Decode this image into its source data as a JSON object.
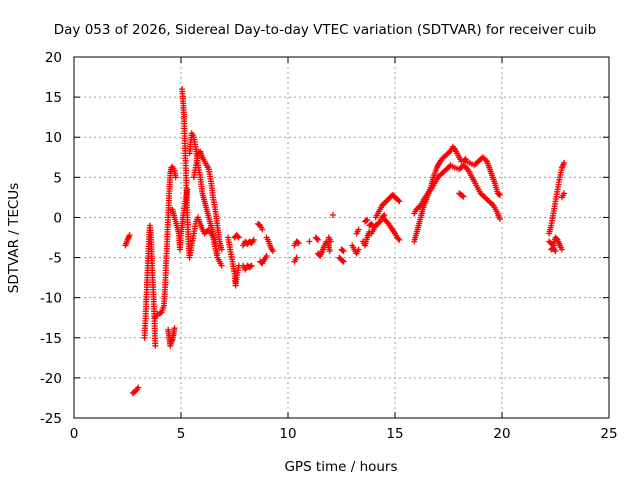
{
  "chart_data": {
    "type": "scatter",
    "title": "Day 053 of 2026, Sidereal Day-to-day VTEC variation (SDTVAR) for receiver cuib",
    "xlabel": "GPS time / hours",
    "ylabel": "SDTVAR / TECUs",
    "xlim": [
      0,
      25
    ],
    "ylim": [
      -25,
      20
    ],
    "xticks": [
      0,
      5,
      10,
      15,
      20,
      25
    ],
    "yticks": [
      -25,
      -20,
      -15,
      -10,
      -5,
      0,
      5,
      10,
      15,
      20
    ],
    "grid": true,
    "marker": "+",
    "color": "#ff0000",
    "segments": [
      [
        [
          2.4,
          -3.5
        ],
        [
          2.5,
          -2.8
        ],
        [
          2.6,
          -2.2
        ]
      ],
      [
        [
          2.75,
          -21.9
        ],
        [
          2.85,
          -21.7
        ],
        [
          2.95,
          -21.4
        ],
        [
          3.0,
          -21.2
        ]
      ],
      [
        [
          3.3,
          -15.0
        ],
        [
          3.35,
          -12.0
        ],
        [
          3.4,
          -9.0
        ],
        [
          3.45,
          -6.0
        ],
        [
          3.5,
          -3.0
        ],
        [
          3.55,
          -1.0
        ],
        [
          3.6,
          -2.5
        ],
        [
          3.65,
          -6.0
        ],
        [
          3.7,
          -9.0
        ],
        [
          3.75,
          -12.0
        ],
        [
          3.8,
          -16.0
        ]
      ],
      [
        [
          3.8,
          -12.5
        ],
        [
          3.9,
          -12.0
        ],
        [
          4.0,
          -12.0
        ],
        [
          4.1,
          -11.8
        ],
        [
          4.2,
          -11.0
        ],
        [
          4.25,
          -9.0
        ],
        [
          4.3,
          -6.0
        ],
        [
          4.35,
          -3.0
        ],
        [
          4.4,
          0.0
        ],
        [
          4.45,
          3.0
        ],
        [
          4.5,
          5.5
        ],
        [
          4.55,
          6.2
        ],
        [
          4.6,
          6.3
        ],
        [
          4.7,
          5.8
        ],
        [
          4.75,
          5.0
        ]
      ],
      [
        [
          4.4,
          -14.0
        ],
        [
          4.45,
          -15.0
        ],
        [
          4.5,
          -16.0
        ],
        [
          4.55,
          -15.5
        ],
        [
          4.6,
          -15.2
        ],
        [
          4.65,
          -14.5
        ],
        [
          4.7,
          -13.8
        ]
      ],
      [
        [
          4.6,
          1.0
        ],
        [
          4.7,
          0.0
        ],
        [
          4.8,
          -1.0
        ],
        [
          4.9,
          -2.0
        ],
        [
          4.95,
          -4.0
        ],
        [
          5.0,
          -2.0
        ],
        [
          5.05,
          -1.0
        ],
        [
          5.1,
          0.0
        ],
        [
          5.2,
          2.0
        ],
        [
          5.3,
          3.5
        ]
      ],
      [
        [
          5.05,
          16.0
        ],
        [
          5.1,
          14.5
        ],
        [
          5.15,
          12.0
        ],
        [
          5.2,
          8.0
        ],
        [
          5.25,
          4.0
        ],
        [
          5.3,
          0.0
        ],
        [
          5.35,
          -3.0
        ],
        [
          5.4,
          -5.0
        ],
        [
          5.5,
          -3.5
        ],
        [
          5.6,
          -2.0
        ],
        [
          5.7,
          -0.5
        ],
        [
          5.8,
          0.0
        ],
        [
          5.9,
          -0.8
        ],
        [
          6.0,
          -1.5
        ],
        [
          6.1,
          -2.0
        ],
        [
          6.3,
          -1.5
        ],
        [
          6.5,
          -2.5
        ],
        [
          6.7,
          -5.0
        ],
        [
          6.9,
          -6.0
        ]
      ],
      [
        [
          5.4,
          8.0
        ],
        [
          5.5,
          10.5
        ],
        [
          5.6,
          10.0
        ],
        [
          5.7,
          8.5
        ],
        [
          5.8,
          6.5
        ],
        [
          5.9,
          5.0
        ],
        [
          6.0,
          3.0
        ],
        [
          6.1,
          2.0
        ],
        [
          6.2,
          1.0
        ],
        [
          6.3,
          0.0
        ],
        [
          6.4,
          -1.0
        ],
        [
          6.5,
          -2.0
        ],
        [
          6.6,
          -3.0
        ],
        [
          6.7,
          -4.5
        ]
      ],
      [
        [
          5.6,
          5.0
        ],
        [
          5.8,
          8.0
        ],
        [
          5.9,
          8.2
        ],
        [
          6.0,
          7.5
        ],
        [
          6.1,
          7.0
        ],
        [
          6.2,
          6.5
        ],
        [
          6.3,
          6.0
        ],
        [
          6.4,
          4.5
        ],
        [
          6.5,
          2.5
        ],
        [
          6.6,
          1.0
        ],
        [
          6.7,
          -1.0
        ],
        [
          6.8,
          -3.0
        ],
        [
          6.9,
          -4.0
        ]
      ],
      [
        [
          7.2,
          -2.5
        ],
        [
          7.3,
          -4.0
        ],
        [
          7.4,
          -5.5
        ],
        [
          7.5,
          -7.0
        ],
        [
          7.55,
          -8.5
        ],
        [
          7.6,
          -7.5
        ],
        [
          7.7,
          -6.0
        ]
      ],
      [
        [
          7.5,
          -2.5
        ],
        [
          7.6,
          -2.2
        ],
        [
          7.7,
          -2.5
        ]
      ],
      [
        [
          7.9,
          -3.5
        ],
        [
          8.0,
          -3.0
        ],
        [
          8.1,
          -3.3
        ],
        [
          8.2,
          -3.0
        ],
        [
          8.3,
          -3.2
        ],
        [
          8.4,
          -2.8
        ]
      ],
      [
        [
          7.9,
          -6.0
        ],
        [
          8.0,
          -6.5
        ],
        [
          8.1,
          -6.0
        ],
        [
          8.2,
          -6.2
        ],
        [
          8.3,
          -6.0
        ]
      ],
      [
        [
          8.6,
          -0.8
        ],
        [
          8.7,
          -1.0
        ],
        [
          8.8,
          -1.5
        ]
      ],
      [
        [
          8.7,
          -5.5
        ],
        [
          8.8,
          -5.7
        ],
        [
          8.9,
          -5.2
        ],
        [
          9.0,
          -4.8
        ]
      ],
      [
        [
          9.0,
          -2.5
        ],
        [
          9.1,
          -3.0
        ],
        [
          9.2,
          -3.8
        ],
        [
          9.3,
          -4.2
        ]
      ],
      [
        [
          10.3,
          -3.5
        ],
        [
          10.4,
          -3.0
        ],
        [
          10.5,
          -3.2
        ]
      ],
      [
        [
          10.3,
          -5.5
        ],
        [
          10.4,
          -5.0
        ]
      ],
      [
        [
          11.0,
          -3.0
        ]
      ],
      [
        [
          11.3,
          -2.5
        ],
        [
          11.4,
          -2.8
        ]
      ],
      [
        [
          11.4,
          -4.5
        ],
        [
          11.5,
          -4.8
        ],
        [
          11.6,
          -4.2
        ],
        [
          11.7,
          -3.5
        ],
        [
          11.8,
          -3.0
        ],
        [
          11.9,
          -3.5
        ],
        [
          11.95,
          -4.2
        ]
      ],
      [
        [
          11.9,
          -2.5
        ],
        [
          12.0,
          -3.0
        ]
      ],
      [
        [
          12.4,
          -5.0
        ],
        [
          12.5,
          -5.3
        ],
        [
          12.6,
          -5.5
        ]
      ],
      [
        [
          12.5,
          -4.0
        ],
        [
          12.6,
          -4.2
        ]
      ],
      [
        [
          12.1,
          0.3
        ]
      ],
      [
        [
          13.0,
          -3.5
        ],
        [
          13.1,
          -4.0
        ],
        [
          13.2,
          -4.5
        ],
        [
          13.3,
          -4.0
        ]
      ],
      [
        [
          13.2,
          -2.0
        ],
        [
          13.3,
          -1.5
        ]
      ],
      [
        [
          13.5,
          -3.0
        ],
        [
          13.6,
          -3.5
        ],
        [
          13.7,
          -2.5
        ],
        [
          13.8,
          -1.8
        ]
      ],
      [
        [
          13.6,
          -0.5
        ],
        [
          13.7,
          -0.3
        ]
      ],
      [
        [
          13.9,
          -2.0
        ],
        [
          14.0,
          -1.5
        ],
        [
          14.1,
          -1.0
        ],
        [
          14.2,
          -0.8
        ],
        [
          14.3,
          -0.5
        ],
        [
          14.4,
          0.0
        ],
        [
          14.5,
          0.3
        ]
      ],
      [
        [
          13.8,
          -1.0
        ],
        [
          13.9,
          -0.8
        ],
        [
          14.0,
          -1.2
        ]
      ],
      [
        [
          14.1,
          0.0
        ],
        [
          14.2,
          0.5
        ],
        [
          14.3,
          1.0
        ],
        [
          14.4,
          1.5
        ],
        [
          14.5,
          1.8
        ],
        [
          14.6,
          2.0
        ],
        [
          14.7,
          2.3
        ],
        [
          14.8,
          2.6
        ],
        [
          14.9,
          2.8
        ],
        [
          15.0,
          2.5
        ],
        [
          15.1,
          2.3
        ],
        [
          15.2,
          2.0
        ]
      ],
      [
        [
          14.5,
          -0.2
        ],
        [
          14.6,
          -0.5
        ],
        [
          14.7,
          -0.8
        ],
        [
          14.8,
          -1.2
        ],
        [
          14.9,
          -1.6
        ],
        [
          15.0,
          -2.0
        ],
        [
          15.1,
          -2.5
        ],
        [
          15.2,
          -2.8
        ]
      ],
      [
        [
          15.9,
          -3.0
        ],
        [
          16.0,
          -2.0
        ],
        [
          16.1,
          -1.0
        ],
        [
          16.2,
          0.0
        ],
        [
          16.3,
          1.0
        ],
        [
          16.4,
          1.8
        ],
        [
          16.5,
          2.5
        ],
        [
          16.6,
          3.2
        ],
        [
          16.7,
          4.0
        ],
        [
          16.8,
          5.0
        ],
        [
          16.9,
          5.8
        ],
        [
          17.0,
          6.5
        ],
        [
          17.2,
          7.3
        ],
        [
          17.4,
          7.8
        ],
        [
          17.6,
          8.3
        ],
        [
          17.7,
          8.8
        ],
        [
          17.8,
          8.5
        ],
        [
          17.9,
          8.0
        ],
        [
          18.0,
          7.5
        ],
        [
          18.1,
          7.0
        ],
        [
          18.2,
          7.0
        ],
        [
          18.3,
          7.3
        ]
      ],
      [
        [
          15.9,
          0.5
        ],
        [
          16.0,
          1.0
        ],
        [
          16.2,
          1.5
        ],
        [
          16.4,
          2.5
        ],
        [
          16.6,
          3.2
        ],
        [
          16.8,
          4.0
        ],
        [
          17.0,
          5.0
        ],
        [
          17.2,
          5.5
        ],
        [
          17.4,
          6.0
        ],
        [
          17.6,
          6.5
        ],
        [
          17.8,
          6.2
        ],
        [
          18.0,
          6.0
        ],
        [
          18.2,
          6.5
        ],
        [
          18.4,
          6.0
        ],
        [
          18.6,
          5.0
        ],
        [
          18.8,
          4.0
        ],
        [
          19.0,
          3.0
        ],
        [
          19.2,
          2.5
        ],
        [
          19.4,
          2.0
        ],
        [
          19.6,
          1.5
        ],
        [
          19.8,
          0.5
        ],
        [
          19.9,
          -0.2
        ]
      ],
      [
        [
          18.0,
          3.0
        ],
        [
          18.1,
          2.8
        ],
        [
          18.2,
          2.6
        ]
      ],
      [
        [
          18.3,
          7.0
        ],
        [
          18.5,
          6.8
        ],
        [
          18.7,
          6.5
        ],
        [
          18.9,
          7.0
        ],
        [
          19.1,
          7.5
        ],
        [
          19.3,
          7.0
        ],
        [
          19.5,
          5.5
        ],
        [
          19.7,
          4.0
        ],
        [
          19.8,
          3.0
        ],
        [
          19.9,
          2.8
        ]
      ],
      [
        [
          22.2,
          -2.0
        ],
        [
          22.3,
          -1.0
        ],
        [
          22.4,
          0.5
        ],
        [
          22.5,
          2.0
        ],
        [
          22.6,
          3.5
        ],
        [
          22.7,
          5.0
        ],
        [
          22.8,
          6.2
        ],
        [
          22.9,
          6.8
        ]
      ],
      [
        [
          22.2,
          -3.0
        ],
        [
          22.4,
          -3.5
        ],
        [
          22.5,
          -2.5
        ],
        [
          22.6,
          -2.8
        ],
        [
          22.7,
          -3.5
        ],
        [
          22.8,
          -4.0
        ]
      ],
      [
        [
          22.3,
          -4.0
        ],
        [
          22.4,
          -3.8
        ],
        [
          22.5,
          -4.2
        ]
      ],
      [
        [
          22.8,
          2.5
        ],
        [
          22.9,
          3.0
        ]
      ]
    ]
  }
}
